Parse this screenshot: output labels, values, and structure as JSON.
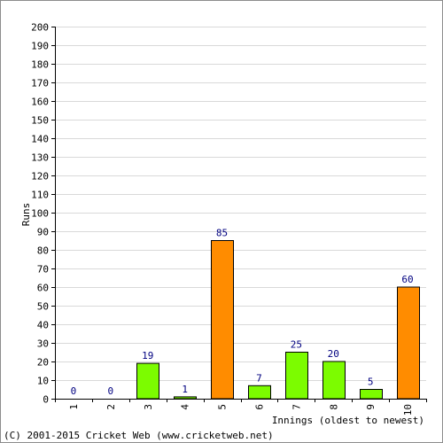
{
  "chart_data": {
    "type": "bar",
    "categories": [
      "1",
      "2",
      "3",
      "4",
      "5",
      "6",
      "7",
      "8",
      "9",
      "10"
    ],
    "values": [
      0,
      0,
      19,
      1,
      85,
      7,
      25,
      20,
      5,
      60
    ],
    "bar_colors": [
      "#7cfc00",
      "#7cfc00",
      "#7cfc00",
      "#7cfc00",
      "#ff8c00",
      "#7cfc00",
      "#7cfc00",
      "#7cfc00",
      "#7cfc00",
      "#ff8c00"
    ],
    "ylabel": "Runs",
    "xlabel": "Innings (oldest to newest)",
    "ylim": [
      0,
      200
    ],
    "ytick_step": 10,
    "grid": true
  },
  "colors": {
    "fifty_plus": "#ff8c00",
    "under_fifty": "#7cfc00",
    "bar_outline": "#000000",
    "grid": "#d9d9d9",
    "axis": "#000000",
    "data_label": "#000080"
  },
  "footer": {
    "credit": "(C) 2001-2015 Cricket Web (www.cricketweb.net)"
  }
}
